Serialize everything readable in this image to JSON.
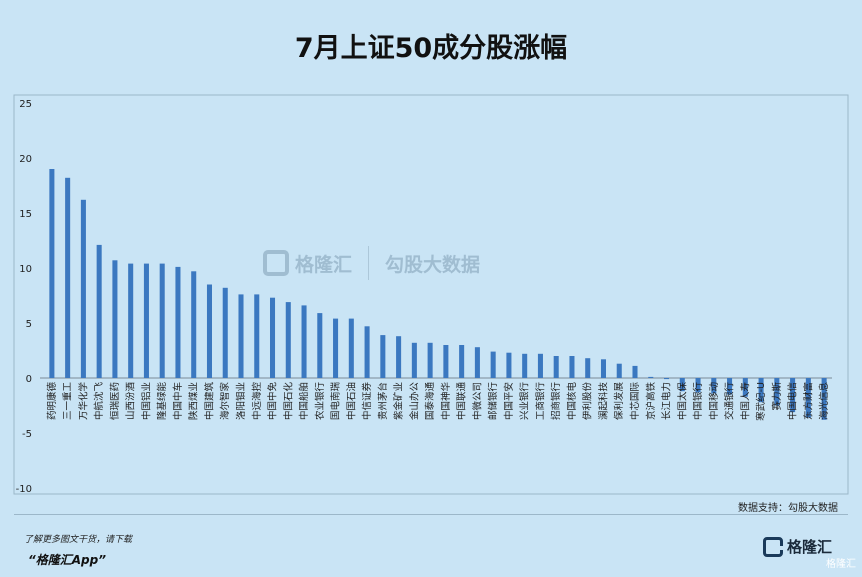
{
  "header": {
    "title": "7月上证50成分股涨幅"
  },
  "source": "数据支持：勾股大数据",
  "footer": {
    "promo": "了解更多图文干货，请下载",
    "app": "“格隆汇App”",
    "logo_text": "格隆汇",
    "corner": "格隆汇"
  },
  "watermark": {
    "brand": "格隆汇",
    "data": "勾股大数据"
  },
  "colors": {
    "bar": "#3b78c0",
    "background": "#c9e4f5",
    "plot_border": "#9cb7c9"
  },
  "chart_data": {
    "type": "bar",
    "title": "7月上证50成分股涨幅",
    "xlabel": "",
    "ylabel": "",
    "ylim": [
      -10,
      25
    ],
    "yticks": [
      -10,
      -5,
      0,
      5,
      10,
      15,
      20,
      25
    ],
    "grid": false,
    "legend": "none",
    "categories": [
      "药明康德",
      "三一重工",
      "万华化学",
      "中航沈飞",
      "恒瑞医药",
      "山西汾酒",
      "中国铝业",
      "隆基绿能",
      "中国中车",
      "陕西煤业",
      "中国建筑",
      "海尔智家",
      "洛阳钼业",
      "中远海控",
      "中国中免",
      "中国石化",
      "中国船舶",
      "农业银行",
      "国电南瑞",
      "中国石油",
      "中信证券",
      "贵州茅台",
      "紫金矿业",
      "金山办公",
      "国泰海通",
      "中国神华",
      "中国联通",
      "中微公司",
      "邮储银行",
      "中国平安",
      "兴业银行",
      "工商银行",
      "招商银行",
      "中国核电",
      "伊利股份",
      "澜起科技",
      "保利发展",
      "中芯国际",
      "京沪高铁",
      "长江电力",
      "中国太保",
      "中国银行",
      "中国移动",
      "交通银行",
      "中国人寿",
      "寒武纪-U",
      "赛力斯",
      "中国电信",
      "东方财富",
      "海光信息"
    ],
    "values": [
      19.0,
      18.2,
      16.2,
      12.1,
      10.7,
      10.4,
      10.4,
      10.4,
      10.1,
      9.7,
      8.5,
      8.2,
      7.6,
      7.6,
      7.3,
      6.9,
      6.6,
      5.9,
      5.4,
      5.4,
      4.7,
      3.9,
      3.8,
      3.2,
      3.2,
      3.0,
      3.0,
      2.8,
      2.4,
      2.3,
      2.2,
      2.2,
      2.0,
      2.0,
      1.8,
      1.7,
      1.3,
      1.1,
      0.1,
      -0.1,
      -1.2,
      -1.3,
      -1.4,
      -1.5,
      -1.7,
      -2.2,
      -2.5,
      -3.1,
      -3.6,
      -3.8
    ]
  }
}
